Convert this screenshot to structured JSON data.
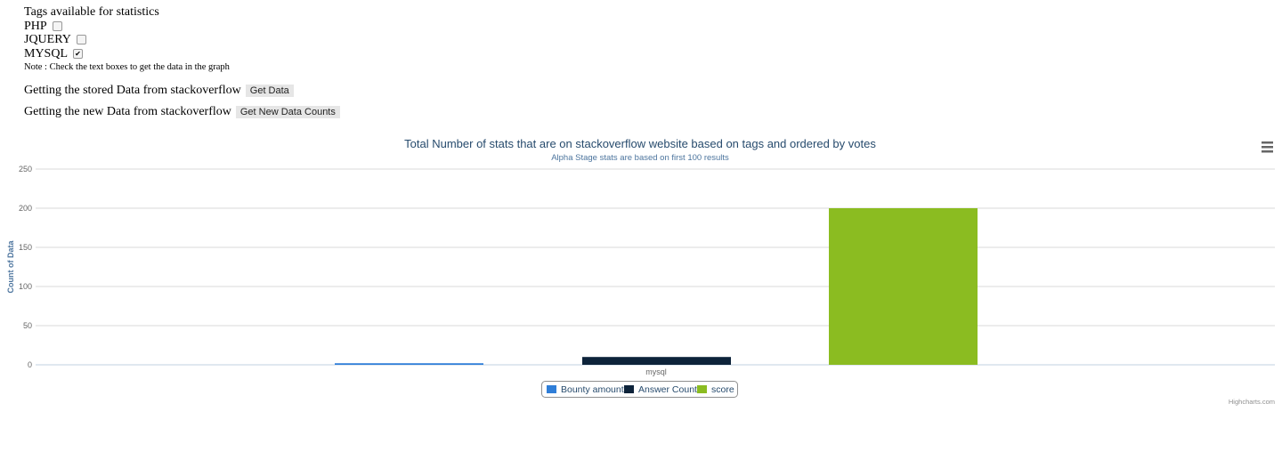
{
  "form": {
    "heading": "Tags available for statistics",
    "tags": [
      {
        "label": "PHP",
        "checked": false
      },
      {
        "label": "JQUERY",
        "checked": false
      },
      {
        "label": "MYSQL",
        "checked": true
      }
    ],
    "note": "Note : Check the text boxes to get the data in the graph",
    "stored_label": "Getting the stored Data from stackoverflow",
    "stored_button": "Get Data",
    "new_label": "Getting the new Data from stackoverflow",
    "new_button": "Get New Data Counts"
  },
  "menu_icon": "hamburger-menu-icon",
  "credits": "Highcharts.com",
  "chart_data": {
    "type": "bar",
    "title": "Total Number of stats that are on stackoverflow website based on tags and ordered by votes",
    "subtitle": "Alpha Stage stats are based on first 100 results",
    "ylabel": "Count of Data",
    "xlabel": "",
    "categories": [
      "mysql"
    ],
    "ylim": [
      0,
      250
    ],
    "yticks": [
      0,
      50,
      100,
      150,
      200,
      250
    ],
    "grid": true,
    "legend": "bottom-center",
    "series": [
      {
        "name": "Bounty amount",
        "values": [
          2
        ],
        "color": "#2f7ed8"
      },
      {
        "name": "Answer Count",
        "values": [
          10
        ],
        "color": "#0d233a"
      },
      {
        "name": "score",
        "values": [
          200
        ],
        "color": "#8bbc21"
      }
    ]
  }
}
